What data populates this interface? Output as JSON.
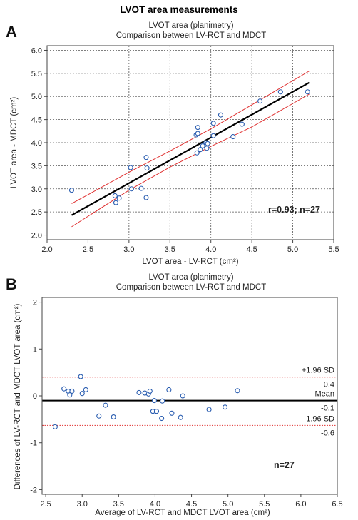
{
  "figure_title": "LVOT area measurements",
  "chart_data": [
    {
      "type": "scatter",
      "panel_label": "A",
      "title": "LVOT  area (planimetry)",
      "subtitle": "Comparison between LV-RCT and MDCT",
      "xlabel": "LVOT area - LV-RCT (cm²)",
      "ylabel": "LVOT area  - MDCT (cm²)",
      "xlim": [
        2.0,
        5.5
      ],
      "ylim": [
        1.9,
        6.1
      ],
      "xticks": [
        "2.0",
        "2.5",
        "3.0",
        "3.5",
        "4.0",
        "4.5",
        "5.0",
        "5.5"
      ],
      "yticks": [
        "2.0",
        "2.5",
        "3.0",
        "3.5",
        "4.0",
        "4.5",
        "5.0",
        "5.5",
        "6.0"
      ],
      "grid": true,
      "regression_line": {
        "x": [
          2.3,
          5.2
        ],
        "y": [
          2.43,
          5.3
        ]
      },
      "confidence_band": {
        "upper": {
          "x": [
            2.3,
            3.0,
            3.5,
            4.0,
            4.5,
            5.2
          ],
          "y": [
            2.68,
            3.36,
            3.82,
            4.3,
            4.82,
            5.55
          ]
        },
        "lower": {
          "x": [
            2.3,
            3.0,
            3.5,
            4.0,
            4.5,
            5.2
          ],
          "y": [
            2.18,
            2.97,
            3.47,
            3.92,
            4.34,
            5.05
          ]
        }
      },
      "annotation": "r=0.93; n=27",
      "points": [
        {
          "x": 2.3,
          "y": 2.97
        },
        {
          "x": 2.83,
          "y": 2.85
        },
        {
          "x": 2.84,
          "y": 2.7
        },
        {
          "x": 2.88,
          "y": 2.8
        },
        {
          "x": 3.02,
          "y": 3.46
        },
        {
          "x": 3.03,
          "y": 3.0
        },
        {
          "x": 3.15,
          "y": 3.01
        },
        {
          "x": 3.21,
          "y": 2.81
        },
        {
          "x": 3.21,
          "y": 3.68
        },
        {
          "x": 3.22,
          "y": 3.45
        },
        {
          "x": 3.82,
          "y": 4.17
        },
        {
          "x": 3.83,
          "y": 3.78
        },
        {
          "x": 3.84,
          "y": 4.33
        },
        {
          "x": 3.84,
          "y": 4.2
        },
        {
          "x": 3.87,
          "y": 3.85
        },
        {
          "x": 3.9,
          "y": 3.93
        },
        {
          "x": 3.94,
          "y": 4.0
        },
        {
          "x": 3.95,
          "y": 3.88
        },
        {
          "x": 4.03,
          "y": 4.15
        },
        {
          "x": 4.03,
          "y": 4.42
        },
        {
          "x": 4.12,
          "y": 4.6
        },
        {
          "x": 4.27,
          "y": 4.13
        },
        {
          "x": 4.38,
          "y": 4.4
        },
        {
          "x": 4.6,
          "y": 4.9
        },
        {
          "x": 4.85,
          "y": 5.1
        },
        {
          "x": 5.18,
          "y": 5.1
        },
        {
          "x": 3.96,
          "y": 3.98
        }
      ]
    },
    {
      "type": "scatter",
      "panel_label": "B",
      "title": "LVOT  area (planimetry)",
      "subtitle": "Comparison between LV-RCT and MDCT",
      "xlabel": "Average of LV-RCT and MDCT LVOT area (cm²)",
      "ylabel": "Differences of LV-RCT and MDCT LVOT area (cm²)",
      "xlim": [
        2.45,
        6.5
      ],
      "ylim": [
        -2.1,
        2.1
      ],
      "xticks": [
        "2.5",
        "3.0",
        "3.5",
        "4.0",
        "4.5",
        "5.0",
        "5.5",
        "6.0",
        "6.5"
      ],
      "yticks": [
        "-2",
        "-1",
        "0",
        "1",
        "2"
      ],
      "grid": false,
      "mean_line": {
        "value": -0.1,
        "label": "Mean",
        "value_label": "-0.1"
      },
      "upper_limit": {
        "value": 0.4,
        "label": "+1.96 SD",
        "value_label": "0.4"
      },
      "lower_limit": {
        "value": -0.63,
        "label": "-1.96 SD",
        "value_label": "-0.6"
      },
      "annotation": "n=27",
      "points": [
        {
          "x": 2.63,
          "y": -0.66
        },
        {
          "x": 2.75,
          "y": 0.15
        },
        {
          "x": 2.81,
          "y": 0.1
        },
        {
          "x": 2.83,
          "y": 0.02
        },
        {
          "x": 2.86,
          "y": 0.1
        },
        {
          "x": 2.98,
          "y": 0.41
        },
        {
          "x": 3.0,
          "y": 0.05
        },
        {
          "x": 3.05,
          "y": 0.13
        },
        {
          "x": 3.23,
          "y": -0.43
        },
        {
          "x": 3.32,
          "y": -0.2
        },
        {
          "x": 3.43,
          "y": -0.45
        },
        {
          "x": 3.78,
          "y": 0.07
        },
        {
          "x": 3.86,
          "y": 0.06
        },
        {
          "x": 3.91,
          "y": 0.04
        },
        {
          "x": 3.93,
          "y": 0.1
        },
        {
          "x": 3.97,
          "y": -0.33
        },
        {
          "x": 3.99,
          "y": -0.1
        },
        {
          "x": 4.02,
          "y": -0.33
        },
        {
          "x": 4.09,
          "y": -0.48
        },
        {
          "x": 4.1,
          "y": -0.11
        },
        {
          "x": 4.19,
          "y": 0.13
        },
        {
          "x": 4.23,
          "y": -0.37
        },
        {
          "x": 4.35,
          "y": -0.46
        },
        {
          "x": 4.38,
          "y": 0.0
        },
        {
          "x": 4.74,
          "y": -0.29
        },
        {
          "x": 4.96,
          "y": -0.24
        },
        {
          "x": 5.13,
          "y": 0.11
        }
      ]
    }
  ],
  "colors": {
    "points": "#2a5db0",
    "regression": "#000000",
    "confidence": "#e03030",
    "limits": "#e03030",
    "mean": "#000000"
  }
}
